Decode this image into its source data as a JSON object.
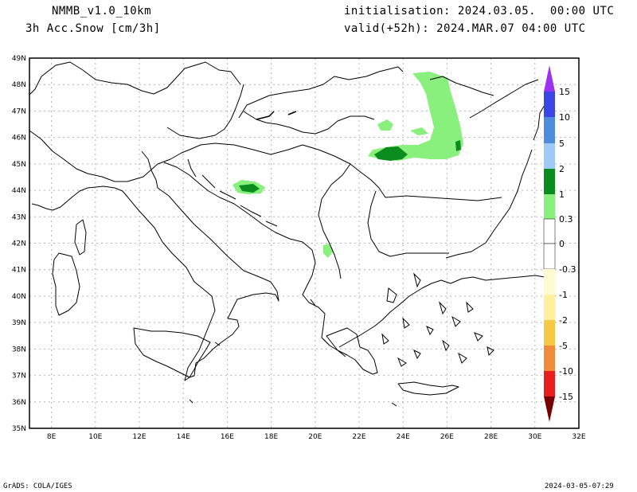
{
  "header": {
    "model": "NMMB_v1.0_10km",
    "field": "3h Acc.Snow [cm/3h]",
    "init": "initialisation: 2024.03.05.  00:00 UTC",
    "valid": "valid(+52h): 2024.MAR.07 04:00 UTC"
  },
  "axes": {
    "lat_labels": [
      "49N",
      "48N",
      "47N",
      "46N",
      "45N",
      "44N",
      "43N",
      "42N",
      "41N",
      "40N",
      "39N",
      "38N",
      "37N",
      "36N",
      "35N"
    ],
    "lon_labels": [
      "8E",
      "10E",
      "12E",
      "14E",
      "16E",
      "18E",
      "20E",
      "22E",
      "24E",
      "26E",
      "28E",
      "30E",
      "32E"
    ]
  },
  "colorbar": {
    "labels": [
      "15",
      "10",
      "5",
      "2",
      "1",
      "0.3",
      "0",
      "-0.3",
      "-1",
      "-2",
      "-5",
      "-10",
      "-15"
    ],
    "colors": {
      "top_arrow": "#9b32f0",
      "10_15": "#3c46e6",
      "5_10": "#508cdc",
      "2_5": "#9ecaf5",
      "1_2": "#0a8c1e",
      "0.3_1": "#8af07d",
      "neg_0.3_0": "#fffad2",
      "neg_1": "#fff0a0",
      "neg_2": "#f5c846",
      "neg_5": "#f08c3c",
      "neg_10": "#e61e1e",
      "neg_15": "#aa0000",
      "bottom_arrow": "#780000"
    }
  },
  "footer": {
    "left": "GrADS: COLA/IGES",
    "right": "2024-03-05-07:29"
  }
}
